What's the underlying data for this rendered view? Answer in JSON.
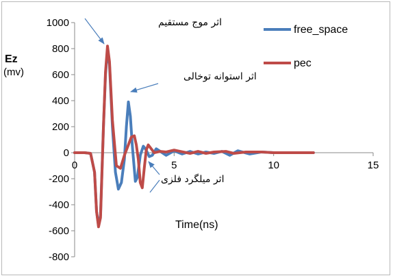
{
  "chart_data": {
    "type": "line",
    "title": "",
    "xlabel": "Time(ns)",
    "ylabel": "Ez",
    "ylabel_unit": "(mv)",
    "xlim": [
      0,
      15
    ],
    "ylim": [
      -800,
      1000
    ],
    "x_ticks": [
      "0",
      "5",
      "10",
      "15"
    ],
    "y_ticks": [
      "-800",
      "-600",
      "-400",
      "-200",
      "0",
      "200",
      "400",
      "600",
      "800",
      "1000"
    ],
    "legend_position": "top-right",
    "series": [
      {
        "name": "free_space",
        "color": "#4a7ebb",
        "points": [
          [
            0,
            0
          ],
          [
            0.5,
            0
          ],
          [
            0.8,
            -5
          ],
          [
            1.0,
            -150
          ],
          [
            1.1,
            -450
          ],
          [
            1.2,
            -560
          ],
          [
            1.3,
            -480
          ],
          [
            1.45,
            200
          ],
          [
            1.55,
            600
          ],
          [
            1.65,
            790
          ],
          [
            1.75,
            680
          ],
          [
            1.9,
            200
          ],
          [
            2.05,
            -150
          ],
          [
            2.2,
            -280
          ],
          [
            2.35,
            -230
          ],
          [
            2.5,
            -50
          ],
          [
            2.6,
            200
          ],
          [
            2.7,
            390
          ],
          [
            2.8,
            280
          ],
          [
            2.9,
            50
          ],
          [
            3.05,
            -220
          ],
          [
            3.15,
            -190
          ],
          [
            3.3,
            -20
          ],
          [
            3.45,
            50
          ],
          [
            3.6,
            20
          ],
          [
            3.75,
            -30
          ],
          [
            3.9,
            -20
          ],
          [
            4.1,
            30
          ],
          [
            4.3,
            10
          ],
          [
            4.6,
            -20
          ],
          [
            5.0,
            15
          ],
          [
            5.4,
            -10
          ],
          [
            5.8,
            10
          ],
          [
            6.2,
            -10
          ],
          [
            6.6,
            5
          ],
          [
            7.0,
            -5
          ],
          [
            7.4,
            10
          ],
          [
            7.8,
            -20
          ],
          [
            8.2,
            15
          ],
          [
            8.8,
            -10
          ],
          [
            9.4,
            5
          ],
          [
            10,
            0
          ],
          [
            12,
            0
          ]
        ]
      },
      {
        "name": "pec",
        "color": "#be4b48",
        "points": [
          [
            0,
            0
          ],
          [
            0.5,
            0
          ],
          [
            0.8,
            -5
          ],
          [
            1.0,
            -150
          ],
          [
            1.1,
            -450
          ],
          [
            1.2,
            -570
          ],
          [
            1.3,
            -500
          ],
          [
            1.45,
            200
          ],
          [
            1.55,
            620
          ],
          [
            1.65,
            820
          ],
          [
            1.75,
            700
          ],
          [
            1.9,
            250
          ],
          [
            2.1,
            -100
          ],
          [
            2.3,
            -120
          ],
          [
            2.5,
            -20
          ],
          [
            2.7,
            60
          ],
          [
            2.85,
            120
          ],
          [
            3.0,
            130
          ],
          [
            3.1,
            60
          ],
          [
            3.2,
            -50
          ],
          [
            3.3,
            -230
          ],
          [
            3.4,
            -270
          ],
          [
            3.5,
            -120
          ],
          [
            3.6,
            20
          ],
          [
            3.7,
            60
          ],
          [
            3.85,
            30
          ],
          [
            4.0,
            0
          ],
          [
            4.3,
            10
          ],
          [
            4.6,
            5
          ],
          [
            5.0,
            20
          ],
          [
            5.3,
            10
          ],
          [
            5.8,
            -5
          ],
          [
            6.2,
            10
          ],
          [
            6.6,
            -5
          ],
          [
            7.0,
            5
          ],
          [
            7.6,
            10
          ],
          [
            8.0,
            -5
          ],
          [
            8.6,
            5
          ],
          [
            9.4,
            5
          ],
          [
            10,
            0
          ],
          [
            12,
            0
          ]
        ]
      }
    ],
    "annotations": [
      {
        "text": "اثر موج مستقیم"
      },
      {
        "text": "اثر استوانه توخالی"
      },
      {
        "text": "اثر میلگرد فلزی"
      }
    ]
  }
}
